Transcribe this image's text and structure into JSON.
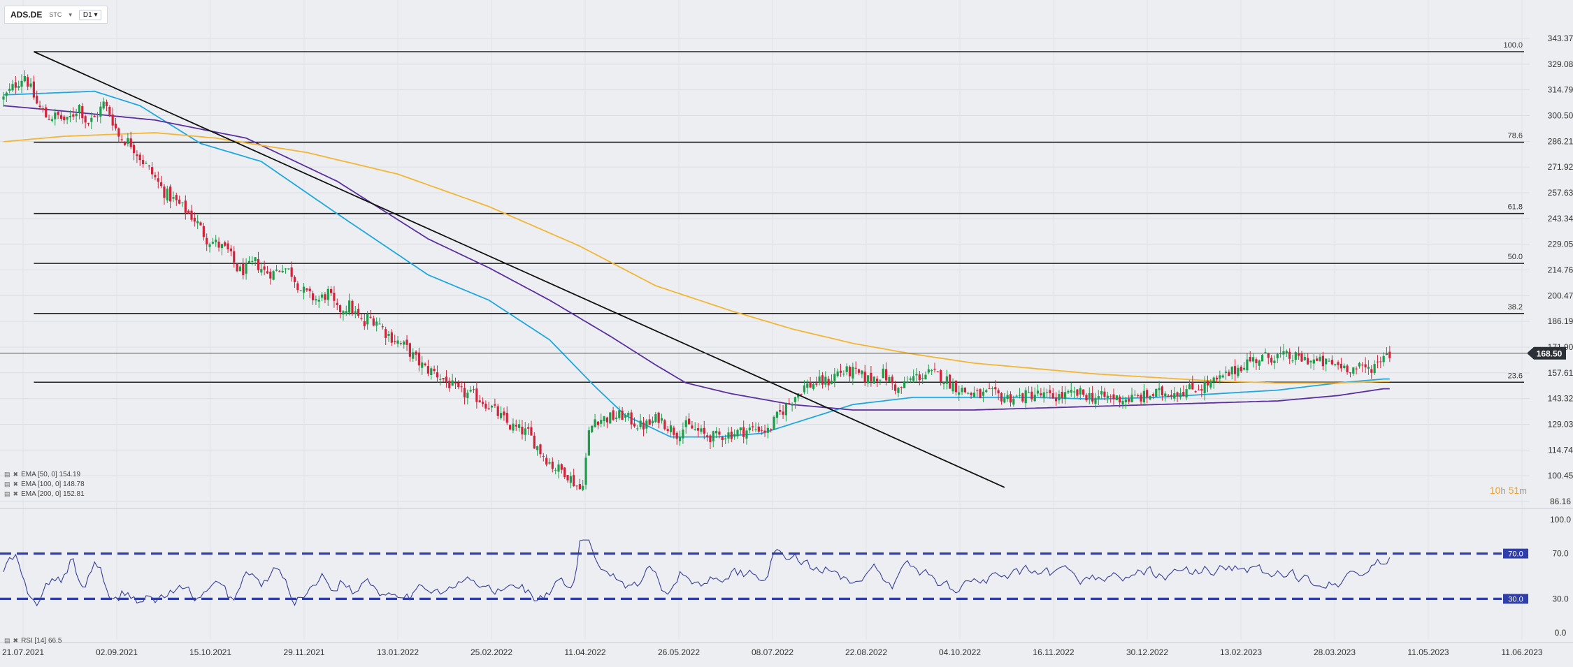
{
  "toolbar": {
    "symbol": "ADS.DE",
    "exchange": "STC",
    "timeframe": "D1"
  },
  "price_axis_ticks": [
    "343.37",
    "329.08",
    "314.79",
    "300.50",
    "286.21",
    "271.92",
    "257.63",
    "243.34",
    "229.05",
    "214.76",
    "200.47",
    "186.19",
    "171.90",
    "157.61",
    "143.32",
    "129.03",
    "114.74",
    "100.45",
    "86.16"
  ],
  "rsi_axis_ticks": [
    "100.0",
    "70.0",
    "30.0",
    "0.0"
  ],
  "current_price_label": "168.50",
  "countdown": {
    "hours": "10",
    "h": "h",
    "minutes": "51",
    "m": "m"
  },
  "indicators": [
    {
      "label": "EMA [50, 0] 154.19"
    },
    {
      "label": "EMA [100, 0] 148.78"
    },
    {
      "label": "EMA [200, 0] 152.81"
    }
  ],
  "rsi_legend": "RSI [14] 66.5",
  "colors": {
    "up": "#1e9e4a",
    "down": "#d0243c",
    "ema50": "#1ea7e1",
    "ema100": "#5b2fa0",
    "ema200": "#f3b634",
    "rsi_line": "#3a3d99",
    "rsi_band": "#2f3ea8",
    "fib": "#222222"
  },
  "chart_data": [
    {
      "type": "candlestick",
      "title": "ADS.DE",
      "timeframe": "D1",
      "ylim": [
        86.16,
        350
      ],
      "x_tick_labels": [
        "21.07.2021",
        "02.09.2021",
        "15.10.2021",
        "29.11.2021",
        "13.01.2022",
        "25.02.2022",
        "11.04.2022",
        "26.05.2022",
        "08.07.2022",
        "22.08.2022",
        "04.10.2022",
        "16.11.2022",
        "30.12.2022",
        "13.02.2023",
        "28.03.2023",
        "11.05.2023",
        "11.06.2023"
      ],
      "last_price": 168.5,
      "close_path": [
        [
          0,
          310
        ],
        [
          8,
          318
        ],
        [
          14,
          323
        ],
        [
          22,
          307
        ],
        [
          28,
          300
        ],
        [
          36,
          300
        ],
        [
          42,
          297
        ],
        [
          50,
          306
        ],
        [
          55,
          296
        ],
        [
          60,
          299
        ],
        [
          66,
          307
        ],
        [
          70,
          302
        ],
        [
          76,
          289
        ],
        [
          84,
          285
        ],
        [
          92,
          275
        ],
        [
          99,
          267
        ],
        [
          106,
          258
        ],
        [
          113,
          253
        ],
        [
          120,
          248
        ],
        [
          127,
          242
        ],
        [
          134,
          232
        ],
        [
          141,
          229
        ],
        [
          148,
          225
        ],
        [
          155,
          214
        ],
        [
          160,
          215
        ],
        [
          166,
          219
        ],
        [
          172,
          214
        ],
        [
          178,
          213
        ],
        [
          184,
          217
        ],
        [
          190,
          213
        ],
        [
          196,
          204
        ],
        [
          202,
          200
        ],
        [
          208,
          198
        ],
        [
          214,
          202
        ],
        [
          220,
          192
        ],
        [
          228,
          195
        ],
        [
          234,
          188
        ],
        [
          238,
          184
        ],
        [
          240,
          188
        ],
        [
          246,
          187
        ],
        [
          252,
          180
        ],
        [
          258,
          176
        ],
        [
          265,
          172
        ],
        [
          272,
          165
        ],
        [
          278,
          160
        ],
        [
          284,
          158
        ],
        [
          290,
          154
        ],
        [
          296,
          150
        ],
        [
          300,
          147
        ],
        [
          304,
          146
        ],
        [
          310,
          145
        ],
        [
          316,
          142
        ],
        [
          322,
          138
        ],
        [
          328,
          133
        ],
        [
          334,
          128
        ],
        [
          340,
          126
        ],
        [
          346,
          124
        ],
        [
          350,
          119
        ],
        [
          354,
          114
        ],
        [
          358,
          110
        ],
        [
          362,
          106
        ],
        [
          366,
          104
        ],
        [
          370,
          103
        ],
        [
          373,
          100
        ],
        [
          375,
          98
        ],
        [
          377,
          96
        ],
        [
          379,
          94
        ],
        [
          381,
          92
        ],
        [
          384,
          110
        ],
        [
          386,
          124
        ],
        [
          390,
          132
        ],
        [
          395,
          132
        ],
        [
          402,
          133
        ],
        [
          408,
          134
        ],
        [
          414,
          131
        ],
        [
          420,
          128
        ],
        [
          426,
          129
        ],
        [
          432,
          133
        ],
        [
          438,
          128
        ],
        [
          444,
          124
        ],
        [
          450,
          128
        ],
        [
          456,
          126
        ],
        [
          462,
          123
        ],
        [
          468,
          122
        ],
        [
          474,
          123
        ],
        [
          480,
          124
        ],
        [
          486,
          125
        ],
        [
          492,
          126
        ],
        [
          498,
          127
        ],
        [
          504,
          125
        ],
        [
          510,
          133
        ],
        [
          516,
          139
        ],
        [
          522,
          145
        ],
        [
          528,
          150
        ],
        [
          536,
          152
        ],
        [
          544,
          153
        ],
        [
          550,
          158
        ],
        [
          560,
          158
        ],
        [
          570,
          154
        ],
        [
          580,
          157
        ],
        [
          590,
          148
        ],
        [
          600,
          155
        ],
        [
          610,
          157
        ],
        [
          618,
          156
        ],
        [
          624,
          152
        ],
        [
          632,
          148
        ],
        [
          638,
          146
        ],
        [
          644,
          145
        ],
        [
          650,
          146
        ],
        [
          660,
          144
        ],
        [
          670,
          144
        ],
        [
          680,
          146
        ],
        [
          690,
          144
        ],
        [
          700,
          145
        ],
        [
          710,
          146
        ],
        [
          720,
          144
        ],
        [
          730,
          144
        ],
        [
          740,
          143
        ],
        [
          750,
          144
        ],
        [
          760,
          146
        ],
        [
          770,
          147
        ],
        [
          780,
          148
        ],
        [
          790,
          150
        ],
        [
          800,
          153
        ],
        [
          810,
          158
        ],
        [
          820,
          164
        ],
        [
          830,
          166
        ],
        [
          840,
          167
        ],
        [
          850,
          166
        ],
        [
          860,
          165
        ],
        [
          870,
          163
        ],
        [
          880,
          162
        ],
        [
          890,
          160
        ],
        [
          900,
          160
        ],
        [
          906,
          163
        ],
        [
          910,
          168.5
        ]
      ],
      "series": [
        {
          "name": "EMA [50, 0] 154.19",
          "path": [
            [
              0,
              312
            ],
            [
              60,
              314
            ],
            [
              90,
              306
            ],
            [
              130,
              285
            ],
            [
              170,
              275
            ],
            [
              220,
              246
            ],
            [
              280,
              212
            ],
            [
              320,
              198
            ],
            [
              360,
              176
            ],
            [
              390,
              150
            ],
            [
              410,
              134
            ],
            [
              440,
              122
            ],
            [
              470,
              122
            ],
            [
              500,
              124
            ],
            [
              530,
              132
            ],
            [
              560,
              140
            ],
            [
              600,
              144
            ],
            [
              640,
              144
            ],
            [
              680,
              144
            ],
            [
              720,
              143
            ],
            [
              760,
              144
            ],
            [
              800,
              146
            ],
            [
              840,
              148
            ],
            [
              880,
              152
            ],
            [
              910,
              154.19
            ]
          ]
        },
        {
          "name": "EMA [100, 0] 148.78",
          "path": [
            [
              0,
              306
            ],
            [
              40,
              303
            ],
            [
              100,
              298
            ],
            [
              160,
              288
            ],
            [
              220,
              264
            ],
            [
              280,
              232
            ],
            [
              320,
              216
            ],
            [
              360,
              198
            ],
            [
              400,
              178
            ],
            [
              430,
              162
            ],
            [
              450,
              152
            ],
            [
              480,
              146
            ],
            [
              520,
              140
            ],
            [
              560,
              137
            ],
            [
              600,
              137
            ],
            [
              640,
              137
            ],
            [
              680,
              138
            ],
            [
              720,
              139
            ],
            [
              760,
              140
            ],
            [
              800,
              141
            ],
            [
              840,
              142
            ],
            [
              880,
              145
            ],
            [
              910,
              148.78
            ]
          ]
        },
        {
          "name": "EMA [200, 0] 152.81",
          "path": [
            [
              0,
              286
            ],
            [
              40,
              289
            ],
            [
              100,
              291
            ],
            [
              140,
              288
            ],
            [
              200,
              280
            ],
            [
              260,
              268
            ],
            [
              320,
              250
            ],
            [
              380,
              228
            ],
            [
              430,
              206
            ],
            [
              480,
              192
            ],
            [
              520,
              182
            ],
            [
              560,
              174
            ],
            [
              600,
              168
            ],
            [
              640,
              163
            ],
            [
              680,
              160
            ],
            [
              720,
              157
            ],
            [
              760,
              155
            ],
            [
              800,
              153
            ],
            [
              840,
              152
            ],
            [
              880,
              152
            ],
            [
              910,
              152.81
            ]
          ]
        }
      ],
      "trendline": {
        "from": [
          20,
          336
        ],
        "to": [
          660,
          94
        ]
      },
      "fibonacci": [
        {
          "level": "100.0",
          "price": 336
        },
        {
          "level": "78.6",
          "price": 285.7
        },
        {
          "level": "61.8",
          "price": 246.1
        },
        {
          "level": "50.0",
          "price": 218.4
        },
        {
          "level": "38.2",
          "price": 190.6
        },
        {
          "level": "23.6",
          "price": 152.4
        }
      ],
      "fib_x_start": 20
    },
    {
      "type": "line",
      "title": "RSI [14]",
      "ylim": [
        0,
        100
      ],
      "levels": [
        {
          "value": 70,
          "label": "70.0"
        },
        {
          "value": 30,
          "label": "30.0"
        }
      ],
      "last_value": 66.5
    }
  ]
}
